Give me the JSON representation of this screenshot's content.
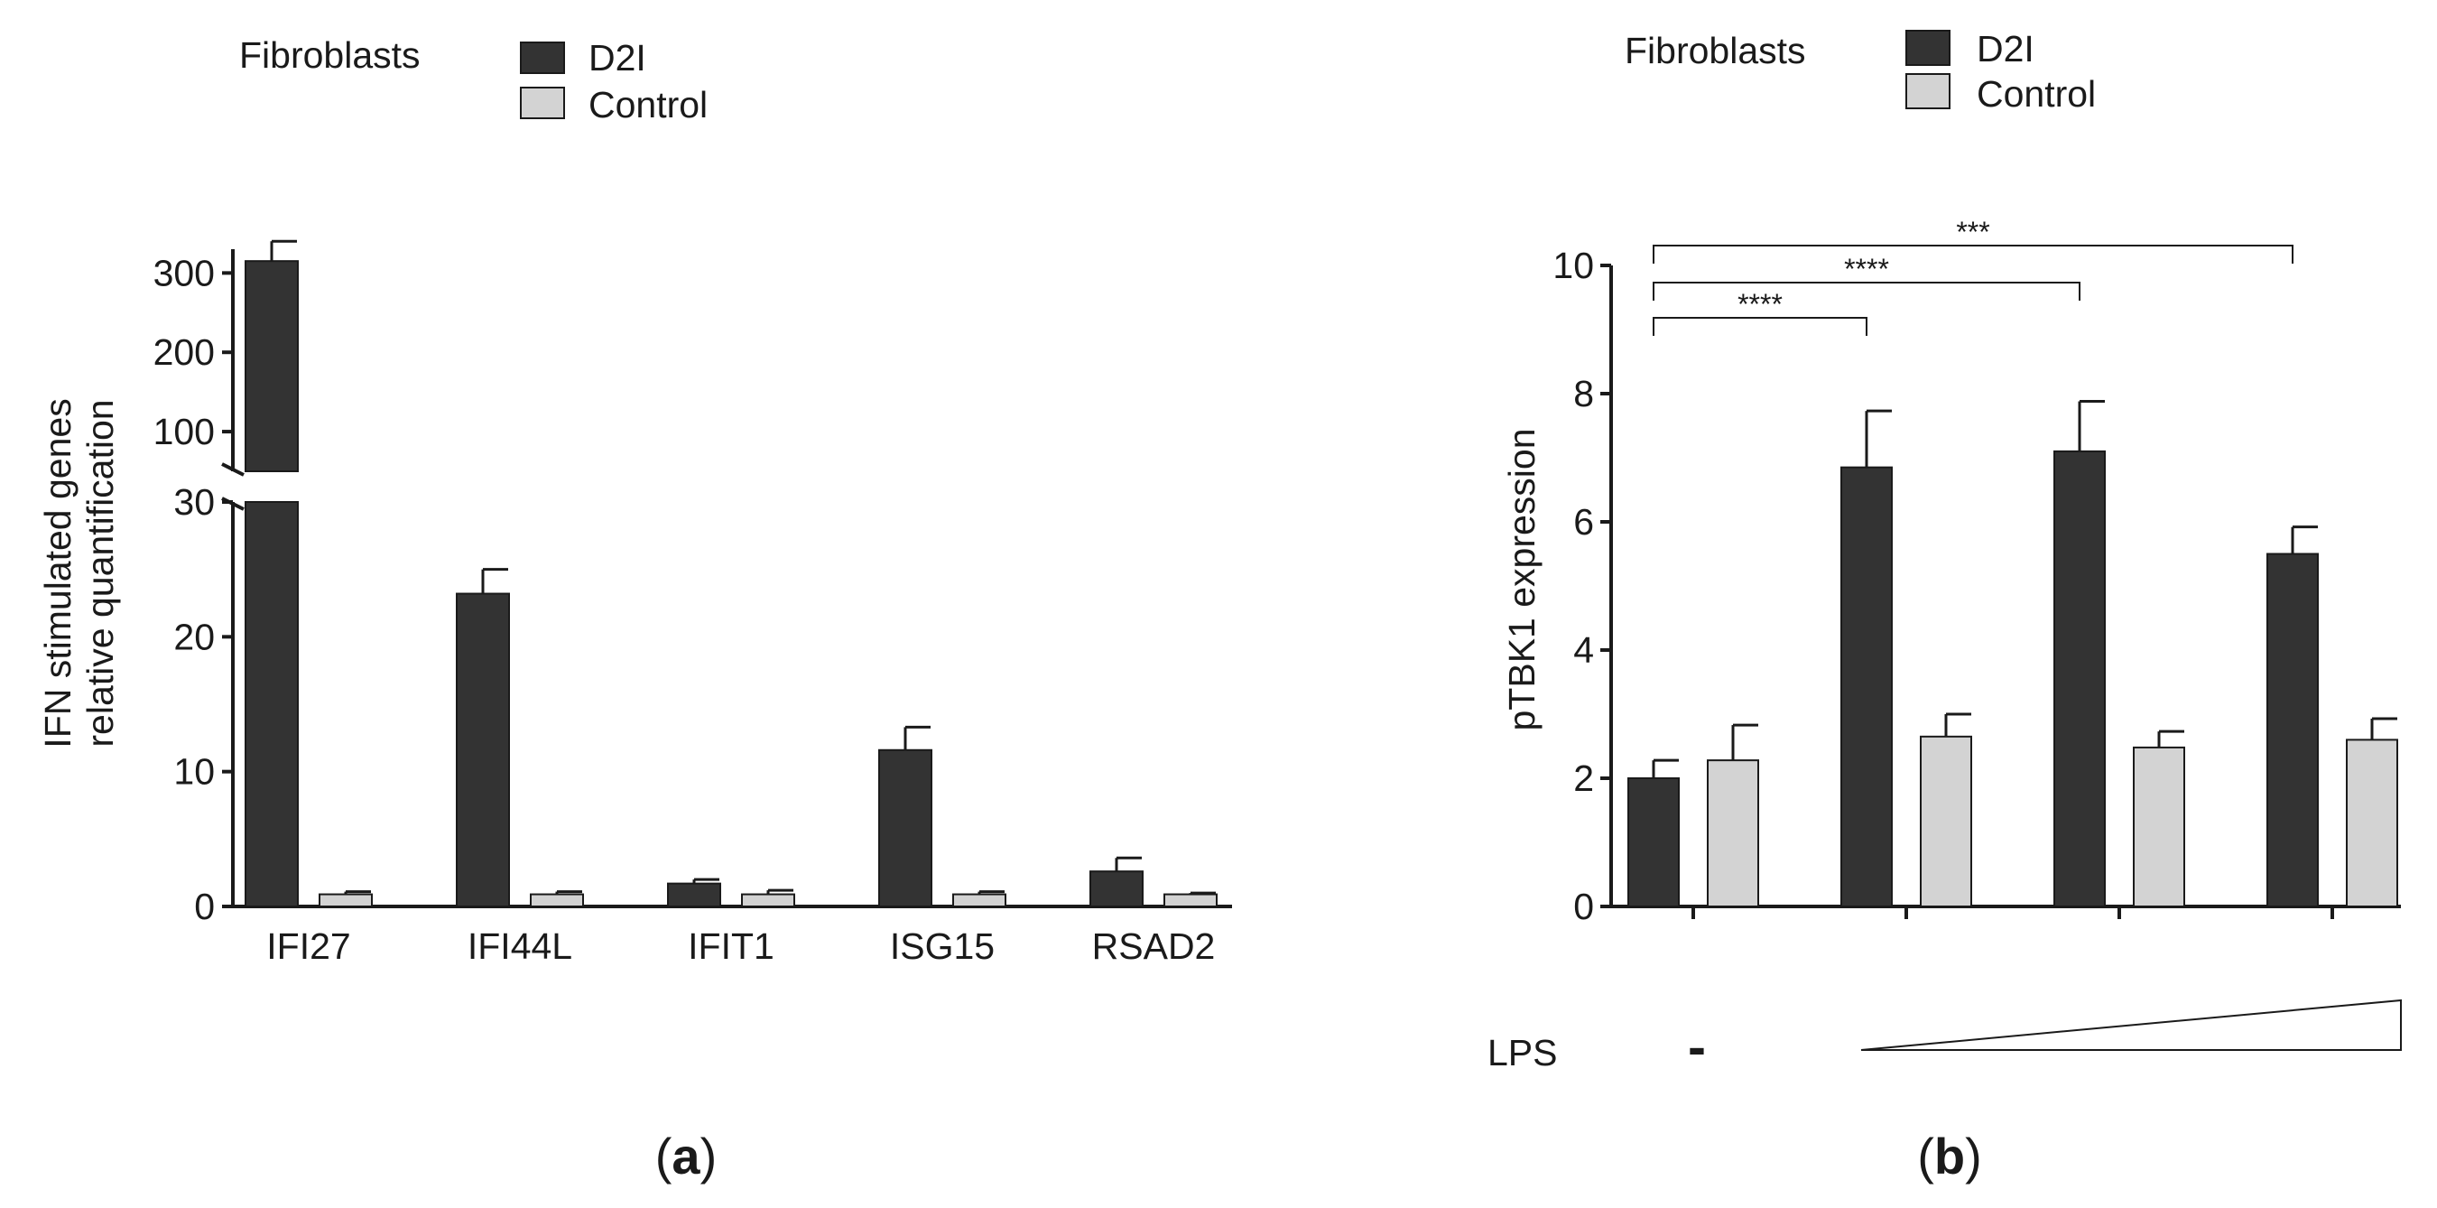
{
  "colors": {
    "d2i": "#333333",
    "control": "#d3d3d3",
    "axis": "#1a1a1a"
  },
  "panel_a_label": "a",
  "panel_b_label": "b",
  "chart_data": [
    {
      "type": "bar",
      "panel": "a",
      "legend_title": "Fibroblasts",
      "legend": [
        "D2I",
        "Control"
      ],
      "ylabel_line1": "IFN stimulated genes",
      "ylabel_line2": "relative quantification",
      "categories": [
        "IFI27",
        "IFI44L",
        "IFIT1",
        "ISG15",
        "RSAD2"
      ],
      "series": [
        {
          "name": "D2I",
          "values": [
            315,
            23.2,
            1.7,
            11.6,
            2.6
          ],
          "errors": [
            25,
            1.8,
            0.3,
            1.7,
            1.0
          ]
        },
        {
          "name": "Control",
          "values": [
            0.9,
            0.9,
            0.9,
            0.9,
            0.9
          ],
          "errors": [
            0.2,
            0.2,
            0.3,
            0.2,
            0.1
          ]
        }
      ],
      "axis_break": {
        "lower": [
          0,
          30
        ],
        "upper": [
          50,
          330
        ]
      },
      "lower_ticks": [
        0,
        10,
        20,
        30
      ],
      "upper_ticks": [
        100,
        200,
        300
      ]
    },
    {
      "type": "bar",
      "panel": "b",
      "legend_title": "Fibroblasts",
      "legend": [
        "D2I",
        "Control"
      ],
      "ylabel": "pTBK1 expression",
      "ylim": [
        0,
        10
      ],
      "yticks": [
        0,
        2,
        4,
        6,
        8,
        10
      ],
      "groups": 4,
      "series": [
        {
          "name": "D2I",
          "values": [
            2.0,
            6.85,
            7.1,
            5.5
          ],
          "errors": [
            0.28,
            0.88,
            0.78,
            0.42
          ]
        },
        {
          "name": "Control",
          "values": [
            2.28,
            2.65,
            2.48,
            2.6
          ],
          "errors": [
            0.55,
            0.35,
            0.25,
            0.33
          ]
        }
      ],
      "significance": [
        {
          "from_group": 0,
          "to_group": 1,
          "label": "****"
        },
        {
          "from_group": 0,
          "to_group": 2,
          "label": "****"
        },
        {
          "from_group": 0,
          "to_group": 3,
          "label": "***"
        }
      ],
      "lps_label": "LPS",
      "lps_none": "-"
    }
  ]
}
